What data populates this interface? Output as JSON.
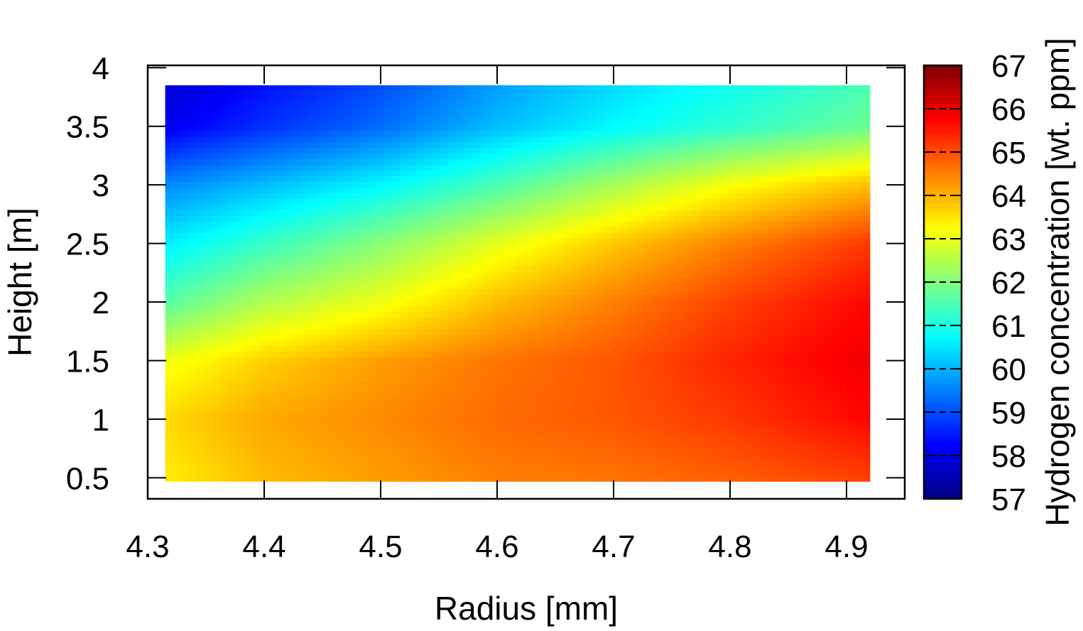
{
  "chart_data": {
    "type": "heatmap",
    "xlabel": "Radius [mm]",
    "ylabel": "Height [m]",
    "colorbar_label": "Hydrogen concentration [wt. ppm]",
    "xlim": [
      4.3,
      4.95
    ],
    "ylim": [
      0.32,
      4.02
    ],
    "data_x_range": [
      4.315,
      4.92
    ],
    "data_y_range": [
      0.47,
      3.85
    ],
    "x_ticks": [
      "4.3",
      "4.4",
      "4.5",
      "4.6",
      "4.7",
      "4.8",
      "4.9"
    ],
    "y_ticks": [
      "0.5",
      "1",
      "1.5",
      "2",
      "2.5",
      "3",
      "3.5",
      "4"
    ],
    "colorbar_ticks": [
      "57",
      "58",
      "59",
      "60",
      "61",
      "62",
      "63",
      "64",
      "65",
      "66",
      "67"
    ],
    "color_range": [
      57,
      67
    ],
    "colormap": "jet",
    "grid": false,
    "x": [
      4.315,
      4.4,
      4.5,
      4.6,
      4.7,
      4.8,
      4.92
    ],
    "y": [
      0.47,
      1.0,
      1.5,
      2.0,
      2.5,
      3.0,
      3.5,
      3.85
    ],
    "z": [
      [
        63.4,
        63.9,
        64.2,
        64.5,
        64.6,
        64.8,
        65.1
      ],
      [
        63.6,
        64.1,
        64.4,
        64.7,
        64.9,
        65.2,
        65.7
      ],
      [
        63.1,
        63.7,
        64.2,
        64.6,
        64.9,
        65.4,
        65.9
      ],
      [
        61.6,
        62.5,
        63.1,
        63.9,
        64.5,
        65.1,
        65.7
      ],
      [
        60.6,
        61.3,
        62.1,
        63.0,
        63.8,
        64.5,
        65.2
      ],
      [
        59.6,
        60.1,
        60.7,
        61.5,
        62.4,
        63.2,
        63.9
      ],
      [
        58.1,
        58.7,
        59.3,
        60.1,
        60.7,
        61.2,
        61.8
      ],
      [
        57.8,
        58.4,
        59.0,
        59.8,
        60.4,
        60.9,
        61.5
      ]
    ]
  }
}
